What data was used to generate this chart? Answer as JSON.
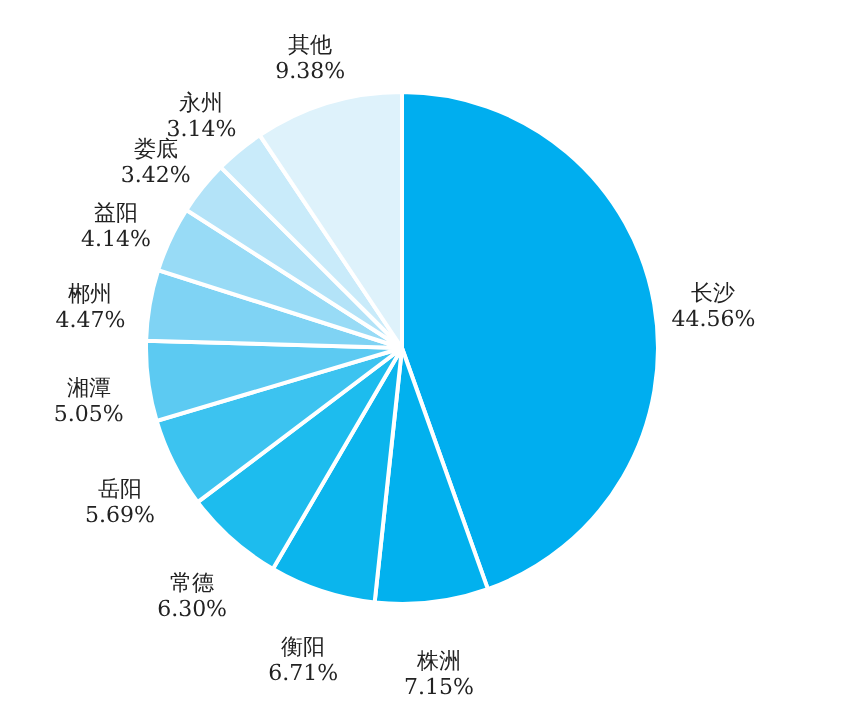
{
  "chart_data": {
    "type": "pie",
    "categories": [
      "长沙",
      "株洲",
      "衡阳",
      "常德",
      "岳阳",
      "湘潭",
      "郴州",
      "益阳",
      "娄底",
      "永州",
      "其他"
    ],
    "values": [
      44.56,
      7.15,
      6.71,
      6.3,
      5.69,
      5.05,
      4.47,
      4.14,
      3.42,
      3.14,
      9.38
    ],
    "value_labels": [
      "44.56%",
      "7.15%",
      "6.71%",
      "6.30%",
      "5.69%",
      "5.05%",
      "4.47%",
      "4.14%",
      "3.42%",
      "3.14%",
      "9.38%"
    ],
    "colors": [
      "#00aeef",
      "#02b1ee",
      "#0bb5ed",
      "#1dbcee",
      "#3cc3f0",
      "#5ccaf2",
      "#7fd3f4",
      "#98dbf6",
      "#b3e3f8",
      "#c9ebfa",
      "#def2fb"
    ]
  }
}
